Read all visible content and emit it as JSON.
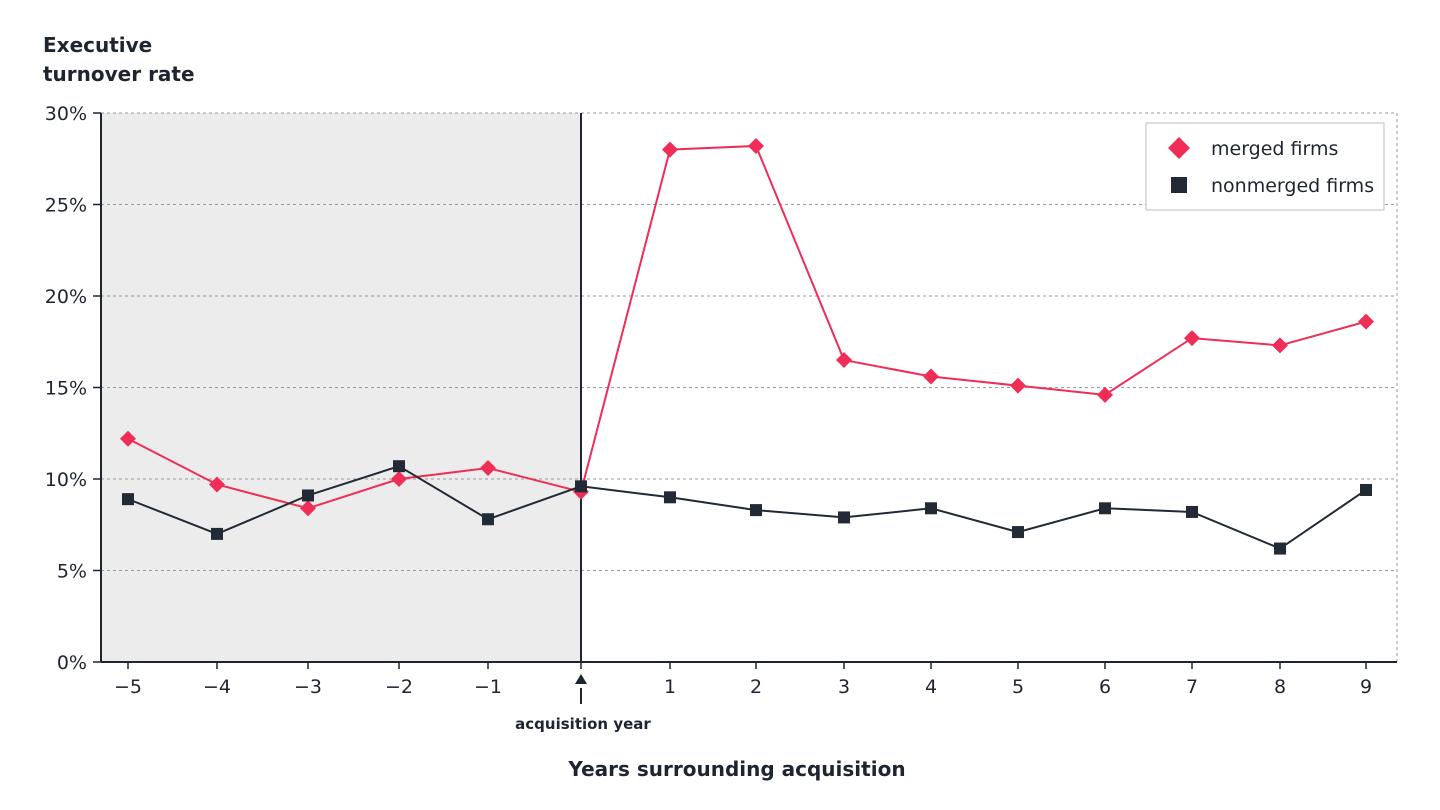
{
  "chart_data": {
    "type": "line",
    "ylabel_lines": [
      "Executive",
      "turnover rate"
    ],
    "xlabel": "Years surrounding acquisition",
    "x": [
      -5,
      -4,
      -3,
      -2,
      -1,
      0,
      1,
      2,
      3,
      4,
      5,
      6,
      7,
      8,
      9
    ],
    "x_tick_labels": [
      "−5",
      "−4",
      "−3",
      "−2",
      "−1",
      "",
      "1",
      "2",
      "3",
      "4",
      "5",
      "6",
      "7",
      "8",
      "9"
    ],
    "ylim": [
      0,
      30
    ],
    "y_ticks": [
      0,
      5,
      10,
      15,
      20,
      25,
      30
    ],
    "y_tick_labels": [
      "0%",
      "5%",
      "10%",
      "15%",
      "20%",
      "25%",
      "30%"
    ],
    "grid": true,
    "shaded_region": [
      -5,
      0
    ],
    "annotation": {
      "text": "acquisition year",
      "x": 0
    },
    "legend_position": "top-right",
    "series": [
      {
        "name": "merged firms",
        "marker": "diamond",
        "color": "#ef2d56",
        "values": [
          12.2,
          9.7,
          8.4,
          10.0,
          10.6,
          9.3,
          28.0,
          28.2,
          16.5,
          15.6,
          15.1,
          14.6,
          17.7,
          17.3,
          18.6
        ]
      },
      {
        "name": "nonmerged firms",
        "marker": "square",
        "color": "#222a35",
        "values": [
          8.9,
          7.0,
          9.1,
          10.7,
          7.8,
          9.6,
          9.0,
          8.3,
          7.9,
          8.4,
          7.1,
          8.4,
          8.2,
          6.2,
          9.4
        ]
      }
    ]
  }
}
